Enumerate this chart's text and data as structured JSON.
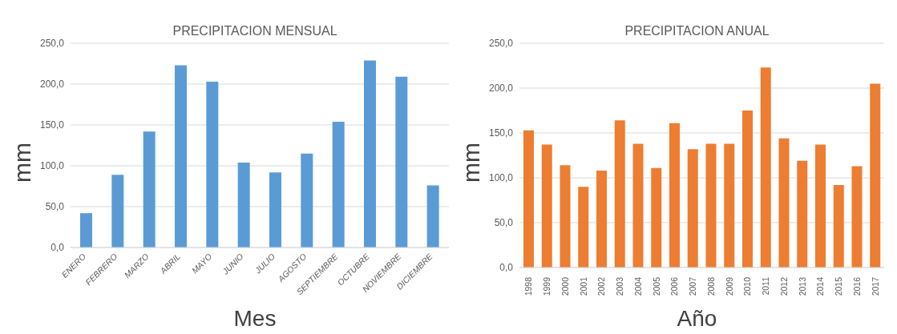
{
  "chart_data": [
    {
      "type": "bar",
      "title": "PRECIPITACION MENSUAL",
      "xlabel": "Mes",
      "ylabel": "mm",
      "categories": [
        "ENERO",
        "FEBRERO",
        "MARZO",
        "ABRIL",
        "MAYO",
        "JUNIO",
        "JULIO",
        "AGOSTO",
        "SEPTIEMBRE",
        "OCTUBRE",
        "NOVIEMBRE",
        "DICIEMBRE"
      ],
      "values": [
        42,
        89,
        142,
        223,
        203,
        104,
        92,
        115,
        154,
        229,
        209,
        76
      ],
      "color": "#5b9bd5",
      "ylim": [
        0,
        250
      ],
      "yticks": [
        {
          "value": 0,
          "label": "0,0"
        },
        {
          "value": 50,
          "label": "50,0"
        },
        {
          "value": 100,
          "label": "100,0"
        },
        {
          "value": 150,
          "label": "150,0"
        },
        {
          "value": 200,
          "label": "200,0"
        },
        {
          "value": 250,
          "label": "250,0"
        }
      ],
      "grid": "y"
    },
    {
      "type": "bar",
      "title": "PRECIPITACION ANUAL",
      "xlabel": "Año",
      "ylabel": "mm",
      "categories": [
        "1998",
        "1999",
        "2000",
        "2001",
        "2002",
        "2003",
        "2004",
        "2005",
        "2006",
        "2007",
        "2008",
        "2009",
        "2010",
        "2011",
        "2012",
        "2013",
        "2014",
        "2015",
        "2016",
        "2017"
      ],
      "values": [
        153,
        137,
        114,
        90,
        108,
        164,
        138,
        111,
        161,
        132,
        138,
        138,
        175,
        223,
        144,
        119,
        137,
        92,
        113,
        205
      ],
      "color": "#ed7d31",
      "ylim": [
        0,
        250
      ],
      "yticks": [
        {
          "value": 0,
          "label": "0,0"
        },
        {
          "value": 50,
          "label": "50,0"
        },
        {
          "value": 100,
          "label": "100,0"
        },
        {
          "value": 150,
          "label": "150,0"
        },
        {
          "value": 200,
          "label": "200,0"
        },
        {
          "value": 250,
          "label": "250,0"
        }
      ],
      "grid": "y"
    }
  ]
}
